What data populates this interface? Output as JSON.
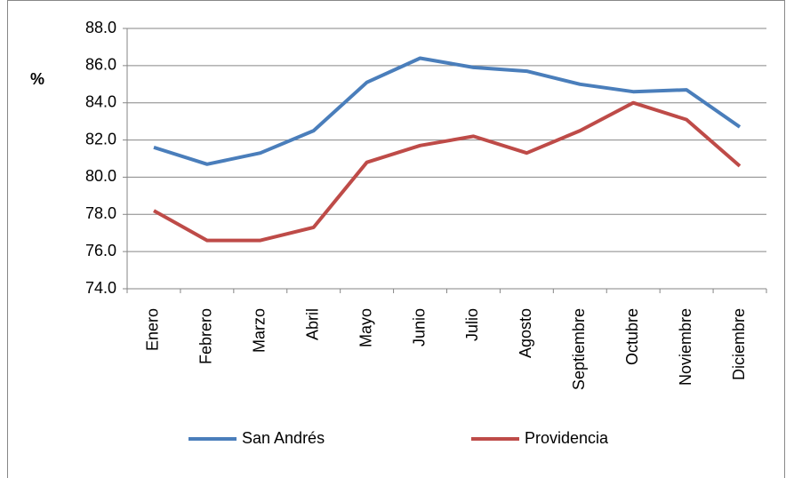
{
  "chart_data": {
    "type": "line",
    "ylabel": "%",
    "categories": [
      "Enero",
      "Febrero",
      "Marzo",
      "Abril",
      "Mayo",
      "Junio",
      "Julio",
      "Agosto",
      "Septiembre",
      "Octubre",
      "Noviembre",
      "Diciembre"
    ],
    "series": [
      {
        "name": "San Andrés",
        "color": "#4a7ebb",
        "values": [
          81.6,
          80.7,
          81.3,
          82.5,
          85.1,
          86.4,
          85.9,
          85.7,
          85.0,
          84.6,
          84.7,
          82.7
        ]
      },
      {
        "name": "Providencia",
        "color": "#be4b48",
        "values": [
          78.2,
          76.6,
          76.6,
          77.3,
          80.8,
          81.7,
          82.2,
          81.3,
          82.5,
          84.0,
          83.1,
          80.6
        ]
      }
    ],
    "ylim": [
      74,
      88
    ],
    "yticks": [
      {
        "value": 74,
        "label": "74.0"
      },
      {
        "value": 76,
        "label": "76.0"
      },
      {
        "value": 78,
        "label": "78.0"
      },
      {
        "value": 80,
        "label": "80.0"
      },
      {
        "value": 82,
        "label": "82.0"
      },
      {
        "value": 84,
        "label": "84.0"
      },
      {
        "value": 86,
        "label": "86.0"
      },
      {
        "value": 88,
        "label": "88.0"
      }
    ],
    "grid": true,
    "legend": "bottom"
  }
}
